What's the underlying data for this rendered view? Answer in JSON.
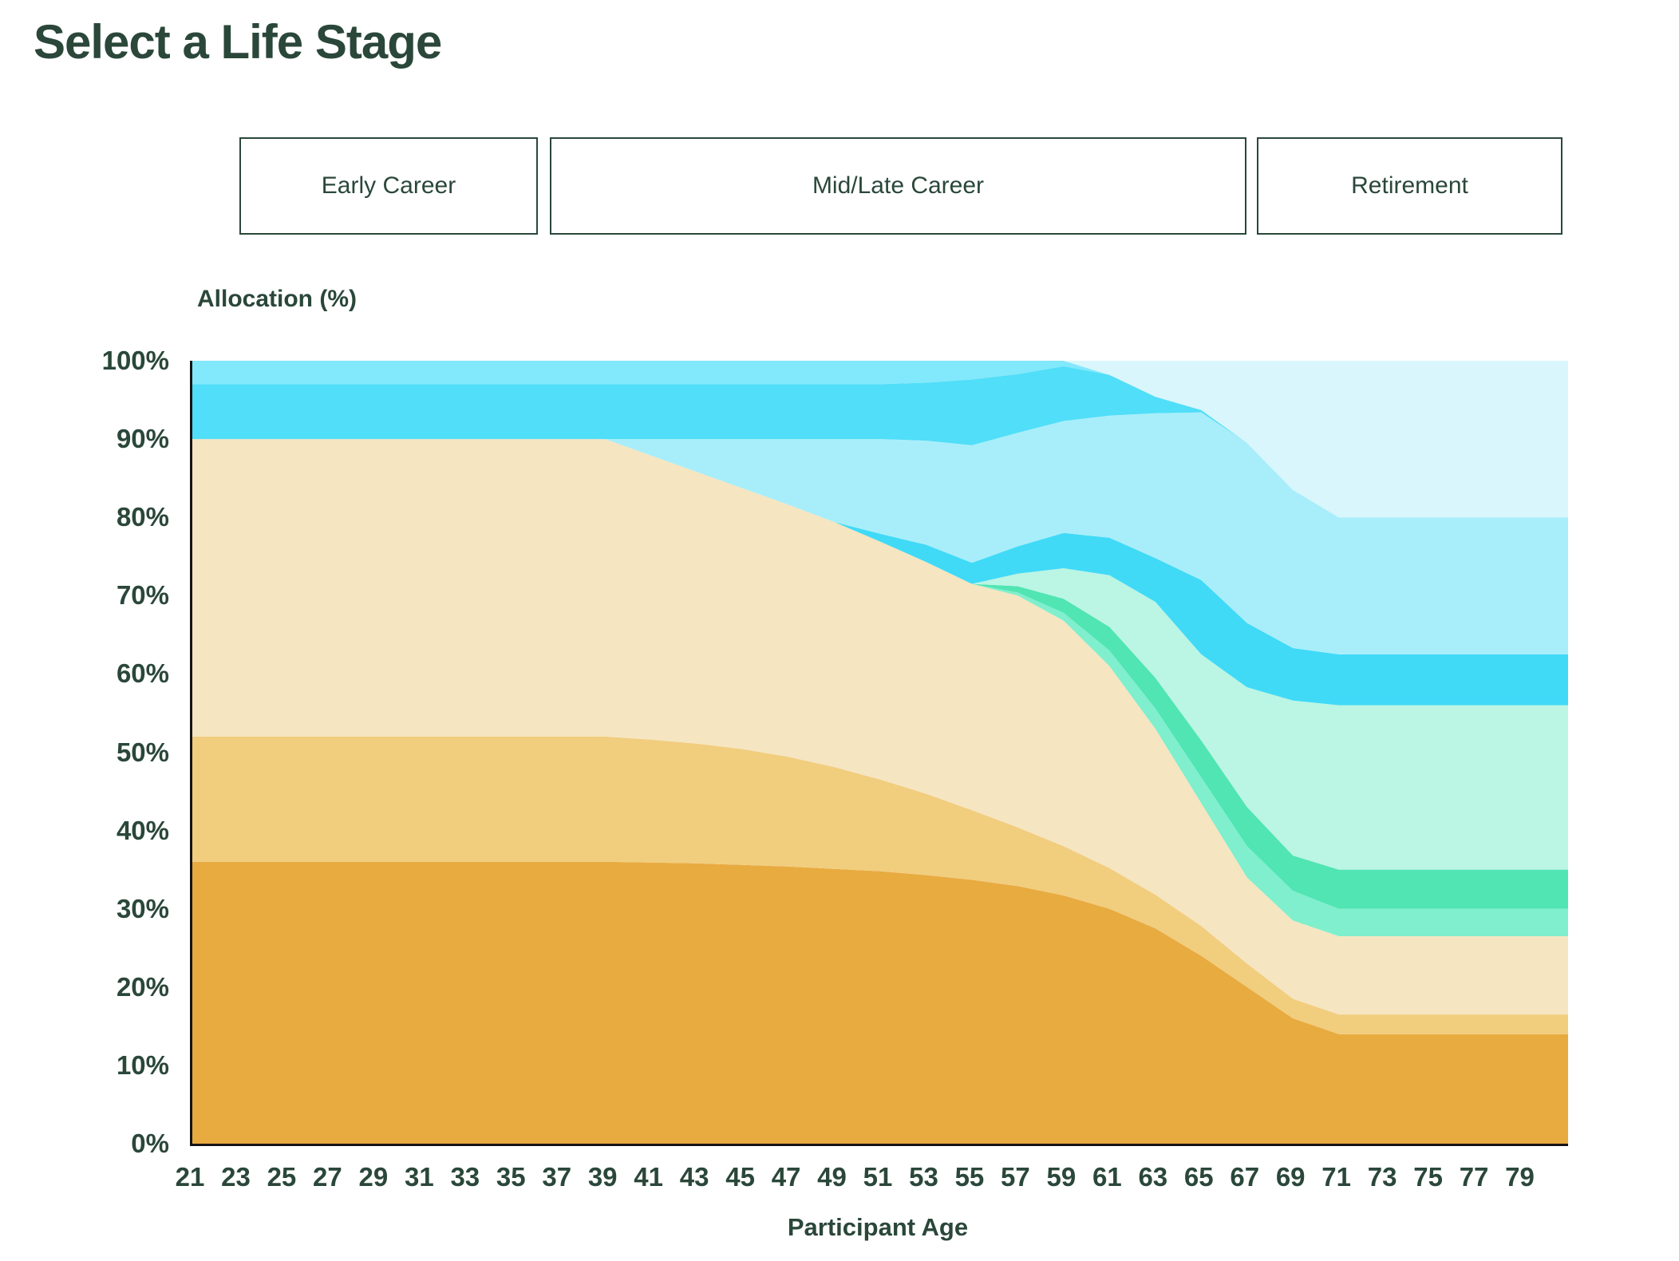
{
  "header": {
    "title": "Select a Life Stage"
  },
  "life_stage_buttons": {
    "early": {
      "label": "Early Career"
    },
    "mid": {
      "label": "Mid/Late Career"
    },
    "retirement": {
      "label": "Retirement"
    }
  },
  "colors": {
    "text": "#2A473A",
    "axis_line": "#141414",
    "background": "#FFFFFF"
  },
  "chart_data": {
    "type": "area",
    "stacked": true,
    "title": "",
    "ylabel": "Allocation (%)",
    "xlabel": "Participant Age",
    "ylim": [
      0,
      100
    ],
    "x_domain": [
      21,
      81
    ],
    "grid": false,
    "legend_position": "none",
    "ytick_values": [
      0,
      10,
      20,
      30,
      40,
      50,
      60,
      70,
      80,
      90,
      100
    ],
    "ytick_suffix": "%",
    "xtick_values": [
      21,
      23,
      25,
      27,
      29,
      31,
      33,
      35,
      37,
      39,
      41,
      43,
      45,
      47,
      49,
      51,
      53,
      55,
      57,
      59,
      61,
      63,
      65,
      67,
      69,
      71,
      73,
      75,
      77,
      79
    ],
    "x": [
      21,
      23,
      25,
      27,
      29,
      31,
      33,
      35,
      37,
      39,
      41,
      43,
      45,
      47,
      49,
      51,
      53,
      55,
      57,
      59,
      61,
      63,
      65,
      67,
      69,
      71,
      73,
      75,
      77,
      79,
      81
    ],
    "series": [
      {
        "name": "amber",
        "color": "#E8AB40",
        "values": [
          36,
          36,
          36,
          36,
          36,
          36,
          36,
          36,
          36,
          36,
          35.9,
          35.8,
          35.6,
          35.4,
          35.1,
          34.8,
          34.3,
          33.7,
          32.9,
          31.7,
          30,
          27.5,
          24,
          20,
          16,
          14,
          14,
          14,
          14,
          14,
          14
        ]
      },
      {
        "name": "gold",
        "color": "#F1CD7E",
        "values": [
          16,
          16,
          16,
          16,
          16,
          16,
          16,
          16,
          16,
          16,
          15.7,
          15.3,
          14.8,
          14,
          13,
          11.7,
          10.4,
          8.9,
          7.5,
          6.3,
          5.2,
          4.3,
          3.8,
          3,
          2.5,
          2.5,
          2.5,
          2.5,
          2.5,
          2.5,
          2.5
        ]
      },
      {
        "name": "cream",
        "color": "#F5E5C1",
        "values": [
          38,
          38,
          38,
          38,
          38,
          38,
          38,
          38,
          38,
          38,
          36.3,
          34.7,
          33.3,
          32.2,
          31.3,
          30.4,
          29.6,
          28.9,
          29.6,
          28.8,
          25.8,
          21.2,
          15.7,
          11,
          10,
          10,
          10,
          10,
          10,
          10,
          10
        ]
      },
      {
        "name": "seafoam-light",
        "color": "#7FEFCD",
        "values": [
          0,
          0,
          0,
          0,
          0,
          0,
          0,
          0,
          0,
          0,
          0,
          0,
          0,
          0,
          0,
          0,
          0,
          0,
          0.4,
          1,
          2,
          2.6,
          3.3,
          4,
          3.8,
          3.5,
          3.5,
          3.5,
          3.5,
          3.5,
          3.5
        ]
      },
      {
        "name": "seafoam",
        "color": "#50E5B2",
        "values": [
          0,
          0,
          0,
          0,
          0,
          0,
          0,
          0,
          0,
          0,
          0,
          0,
          0,
          0,
          0,
          0,
          0,
          0,
          0.8,
          1.8,
          3,
          3.9,
          4.7,
          5,
          4.5,
          5,
          5,
          5,
          5,
          5,
          5
        ]
      },
      {
        "name": "mint",
        "color": "#BBF5E4",
        "values": [
          0,
          0,
          0,
          0,
          0,
          0,
          0,
          0,
          0,
          0,
          0,
          0,
          0,
          0,
          0,
          0,
          0,
          0,
          1.6,
          3.9,
          6.6,
          9.7,
          11,
          15.3,
          19.8,
          21,
          21,
          21,
          21,
          21,
          21
        ]
      },
      {
        "name": "cyan-deep-lower",
        "color": "#40DAF7",
        "values": [
          0,
          0,
          0,
          0,
          0,
          0,
          0,
          0,
          0,
          0,
          0,
          0,
          0,
          0,
          0,
          1,
          2.2,
          2.7,
          3.5,
          4.5,
          4.8,
          5.6,
          9.5,
          8.2,
          6.7,
          6.5,
          6.5,
          6.5,
          6.5,
          6.5,
          6.5
        ]
      },
      {
        "name": "sky-light",
        "color": "#A8EEFA",
        "values": [
          0,
          0,
          0,
          0,
          0,
          0,
          0,
          0,
          0,
          0,
          2.1,
          4.2,
          6.3,
          8.4,
          10.6,
          12.1,
          13.3,
          15,
          14.5,
          14.3,
          15.6,
          18.5,
          21.4,
          23,
          20.2,
          17.5,
          17.5,
          17.5,
          17.5,
          17.5,
          17.5
        ]
      },
      {
        "name": "cyan-deep-upper",
        "color": "#50DEF8",
        "values": [
          7,
          7,
          7,
          7,
          7,
          7,
          7,
          7,
          7,
          7,
          7,
          7,
          7,
          7,
          7,
          7,
          7.4,
          8.4,
          7.5,
          7,
          5.2,
          2.1,
          0.3,
          0,
          0,
          0,
          0,
          0,
          0,
          0,
          0
        ]
      },
      {
        "name": "sky",
        "color": "#82E8FB",
        "values": [
          3,
          3,
          3,
          3,
          3,
          3,
          3,
          3,
          3,
          3,
          3,
          3,
          3,
          3,
          3,
          3,
          2.8,
          2.4,
          1.7,
          0.7,
          0,
          0,
          0,
          0,
          0,
          0,
          0,
          0,
          0,
          0,
          0
        ]
      },
      {
        "name": "ice",
        "color": "#D9F6FC",
        "values": [
          0,
          0,
          0,
          0,
          0,
          0,
          0,
          0,
          0,
          0,
          0,
          0,
          0,
          0,
          0,
          0,
          0,
          0,
          0,
          0,
          1.8,
          4.6,
          6.3,
          10.5,
          16.5,
          20,
          20,
          20,
          20,
          20,
          20
        ]
      }
    ]
  }
}
